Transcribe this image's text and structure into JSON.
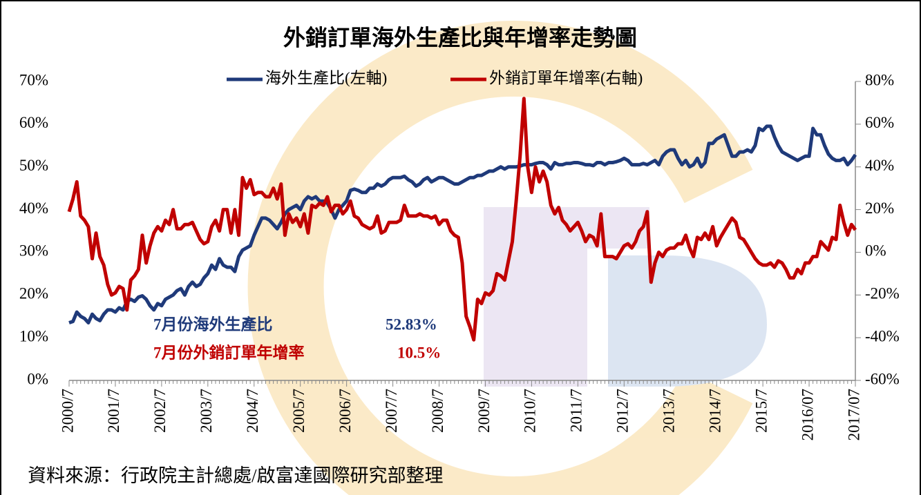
{
  "chart_data": {
    "type": "line",
    "title": "外銷訂單海外生產比與年增率走勢圖",
    "source": "資料來源：行政院主計總處/啟富達國際研究部整理",
    "annotations": [
      {
        "label": "7月份海外生產比",
        "value_label": "52.83%"
      },
      {
        "label": "7月份外銷訂單年增率",
        "value_label": "10.5%"
      }
    ],
    "categories": [
      "2000/7",
      null,
      null,
      null,
      null,
      null,
      null,
      null,
      null,
      null,
      null,
      null,
      "2001/7",
      null,
      null,
      null,
      null,
      null,
      null,
      null,
      null,
      null,
      null,
      null,
      "2002/7",
      null,
      null,
      null,
      null,
      null,
      null,
      null,
      null,
      null,
      null,
      null,
      "2003/7",
      null,
      null,
      null,
      null,
      null,
      null,
      null,
      null,
      null,
      null,
      null,
      "2004/7",
      null,
      null,
      null,
      null,
      null,
      null,
      null,
      null,
      null,
      null,
      null,
      "2005/7",
      null,
      null,
      null,
      null,
      null,
      null,
      null,
      null,
      null,
      null,
      null,
      "2006/7",
      null,
      null,
      null,
      null,
      null,
      null,
      null,
      null,
      null,
      null,
      null,
      "2007/7",
      null,
      null,
      null,
      null,
      null,
      null,
      null,
      null,
      null,
      null,
      null,
      "2008/7",
      null,
      null,
      null,
      null,
      null,
      null,
      null,
      null,
      null,
      null,
      null,
      "2009/7",
      null,
      null,
      null,
      null,
      null,
      null,
      null,
      null,
      null,
      null,
      null,
      "2010/7",
      null,
      null,
      null,
      null,
      null,
      null,
      null,
      null,
      null,
      null,
      null,
      "2011/7",
      null,
      null,
      null,
      null,
      null,
      null,
      null,
      null,
      null,
      null,
      null,
      "2012/7",
      null,
      null,
      null,
      null,
      null,
      null,
      null,
      null,
      null,
      null,
      null,
      "2013/7",
      null,
      null,
      null,
      null,
      null,
      null,
      null,
      null,
      null,
      null,
      null,
      "2014/7",
      null,
      null,
      null,
      null,
      null,
      null,
      null,
      null,
      null,
      null,
      null,
      "2015/7",
      null,
      null,
      null,
      null,
      null,
      null,
      null,
      null,
      null,
      null,
      null,
      "2016/07",
      null,
      null,
      null,
      null,
      null,
      null,
      null,
      null,
      null,
      null,
      null,
      "2017/07"
    ],
    "series": [
      {
        "name": "海外生產比(左軸)",
        "color": "#1f3a7a",
        "axis": "y",
        "values": [
          13.5,
          13.8,
          16,
          15,
          14.5,
          13.5,
          15.5,
          14.5,
          14,
          15.5,
          16.5,
          16.5,
          16,
          17,
          16.5,
          18.5,
          19,
          18.5,
          19.5,
          19.8,
          19,
          17.5,
          16.5,
          18,
          17.5,
          19,
          19.5,
          20,
          21,
          21.5,
          20,
          22,
          23,
          22,
          22.5,
          24,
          25,
          27,
          26,
          28.5,
          27,
          26.5,
          26.5,
          25.5,
          29,
          30.5,
          31,
          31.5,
          34,
          36,
          38,
          38,
          37.5,
          36.5,
          35.5,
          37,
          39,
          40,
          40.5,
          41,
          40,
          42,
          43,
          42.5,
          43,
          42,
          42,
          41.5,
          40,
          38,
          40,
          41,
          42,
          44.5,
          44.8,
          44.5,
          44,
          44,
          45,
          45,
          46,
          45.5,
          46,
          47,
          47.5,
          47.5,
          47.5,
          47.8,
          47,
          46.5,
          45.5,
          46,
          47,
          47.5,
          46.5,
          47,
          47.5,
          47.5,
          47,
          46.5,
          46,
          46,
          46.5,
          47,
          47.5,
          47.5,
          48,
          48,
          48.5,
          49,
          49,
          49.5,
          50,
          49.5,
          50,
          50,
          50,
          50.2,
          50.5,
          50.5,
          50.5,
          50.8,
          51,
          51,
          50.5,
          49.5,
          51,
          50.5,
          50.5,
          50.8,
          50.8,
          51,
          51,
          50.8,
          50.5,
          50.5,
          50.3,
          51,
          51,
          50.5,
          51,
          51,
          51.2,
          51.5,
          52,
          51.5,
          50.5,
          50.5,
          50.5,
          50.8,
          50.5,
          51,
          51.5,
          50.5,
          52.5,
          53.5,
          54,
          54,
          52,
          50.5,
          51.5,
          50,
          50.5,
          52,
          50,
          51,
          55.5,
          55.5,
          56.5,
          57,
          57.5,
          55,
          52.5,
          52.5,
          53.5,
          53.5,
          54,
          53.5,
          55,
          59,
          58.5,
          59.5,
          59.5,
          57,
          55,
          53.5,
          53,
          52.5,
          52,
          51.5,
          52,
          52.5,
          52.5,
          59,
          57.5,
          57.5,
          55,
          53,
          52,
          51.5,
          51.5,
          52,
          50.5,
          51.5,
          52.83
        ]
      },
      {
        "name": "外銷訂單年增率(右軸)",
        "color": "#c00000",
        "axis": "y2",
        "values": [
          19,
          25,
          33,
          17,
          15,
          12,
          -3,
          9,
          -2,
          -6,
          -15,
          -20,
          -19,
          -16,
          -17,
          -27,
          -13,
          -11,
          -8,
          8,
          -5,
          3,
          9,
          12,
          10,
          15,
          13,
          20,
          11,
          11,
          13,
          13,
          14,
          10,
          6,
          4,
          5,
          12,
          15,
          10,
          20,
          20,
          9,
          20,
          8,
          35,
          30,
          34,
          27,
          28,
          28,
          26,
          26,
          30,
          25,
          32,
          8,
          18,
          14,
          16,
          12,
          18,
          9,
          22,
          21,
          23,
          22,
          26,
          19,
          22,
          22,
          18,
          20,
          24,
          17,
          16,
          13,
          12,
          11,
          12,
          17,
          9,
          10,
          14,
          14,
          14,
          15,
          22,
          17,
          17,
          17,
          18,
          17,
          17,
          16,
          17,
          13,
          15,
          15,
          10,
          8,
          7,
          -5,
          -30,
          -35,
          -41,
          -22,
          -24,
          -19,
          -20,
          -18,
          -10,
          -11,
          -13,
          -4,
          5,
          24,
          45,
          72,
          40,
          28,
          40,
          33,
          38,
          33,
          22,
          18,
          21,
          15,
          13,
          10,
          12,
          14,
          10,
          5,
          8,
          7,
          3,
          18,
          -2,
          -2,
          -2,
          -3,
          0,
          3,
          4,
          2,
          5,
          10,
          12,
          19,
          -14,
          -5,
          0,
          -2,
          1,
          2,
          2,
          4,
          4,
          8,
          2,
          -2,
          7,
          6,
          9,
          6,
          12,
          3,
          7,
          10,
          13,
          16,
          14,
          7,
          6,
          3,
          0,
          -3,
          -5,
          -6,
          -6,
          -5,
          -7,
          -4,
          -5,
          -8,
          -12,
          -12,
          -8,
          -10,
          -5,
          -5,
          -2,
          -2,
          5,
          3,
          1,
          7,
          6,
          22,
          14,
          8,
          13,
          10.5
        ]
      }
    ],
    "ylim": [
      0,
      70
    ],
    "yticks": [
      {
        "value": 0,
        "label": "0%"
      },
      {
        "value": 10,
        "label": "10%"
      },
      {
        "value": 20,
        "label": "20%"
      },
      {
        "value": 30,
        "label": "30%"
      },
      {
        "value": 40,
        "label": "40%"
      },
      {
        "value": 50,
        "label": "50%"
      },
      {
        "value": 60,
        "label": "60%"
      },
      {
        "value": 70,
        "label": "70%"
      }
    ],
    "y2lim": [
      -60,
      80
    ],
    "y2ticks": [
      {
        "value": -60,
        "label": "-60%"
      },
      {
        "value": -40,
        "label": "-40%"
      },
      {
        "value": -20,
        "label": "-20%"
      },
      {
        "value": 0,
        "label": "0%"
      },
      {
        "value": 20,
        "label": "20%"
      },
      {
        "value": 40,
        "label": "40%"
      },
      {
        "value": 60,
        "label": "60%"
      },
      {
        "value": 80,
        "label": "80%"
      }
    ],
    "grid": false,
    "legend": "top"
  }
}
